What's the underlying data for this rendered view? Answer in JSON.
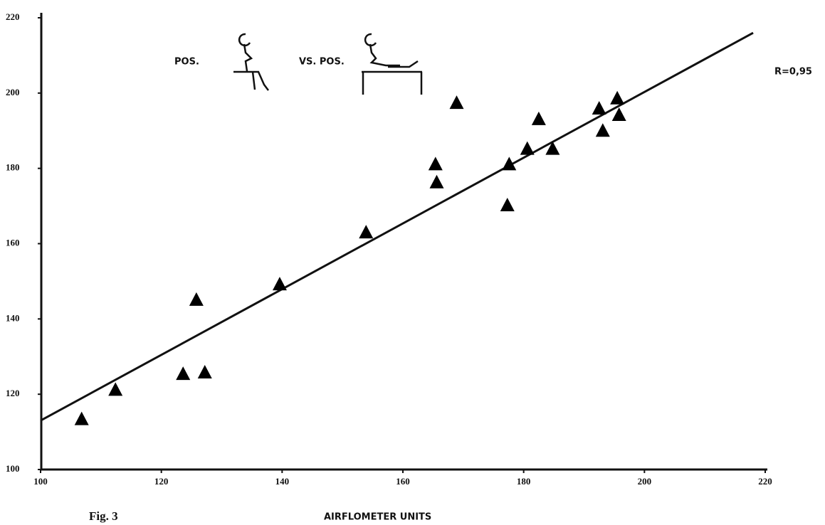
{
  "chart_data": {
    "type": "scatter",
    "x_label": "AIRFLOMETER UNITS",
    "caption": "Fig. 3",
    "annotations": [
      "POS.",
      "VS. POS.",
      "R=0,95"
    ],
    "marker": "triangle",
    "color": "#000000",
    "x": [
      106.8,
      112.4,
      123.6,
      127.2,
      125.8,
      139.6,
      153.9,
      165.4,
      165.6,
      168.9,
      177.3,
      177.6,
      180.6,
      182.5,
      184.8,
      192.5,
      193.1,
      195.5,
      195.8
    ],
    "values": [
      113.3,
      121.1,
      125.3,
      125.7,
      145,
      149.1,
      162.9,
      181,
      176.2,
      197.3,
      170.1,
      181,
      185.1,
      193,
      185.1,
      195.8,
      189.9,
      198.5,
      194.1
    ],
    "trend_line": {
      "x": [
        100,
        218
      ],
      "y": [
        113,
        216
      ]
    },
    "xlim": [
      100,
      220
    ],
    "ylim": [
      100,
      220
    ],
    "xticks": [
      100,
      120,
      140,
      160,
      180,
      200,
      220
    ],
    "yticks": [
      100,
      120,
      140,
      160,
      180,
      200,
      220
    ],
    "grid": false
  }
}
